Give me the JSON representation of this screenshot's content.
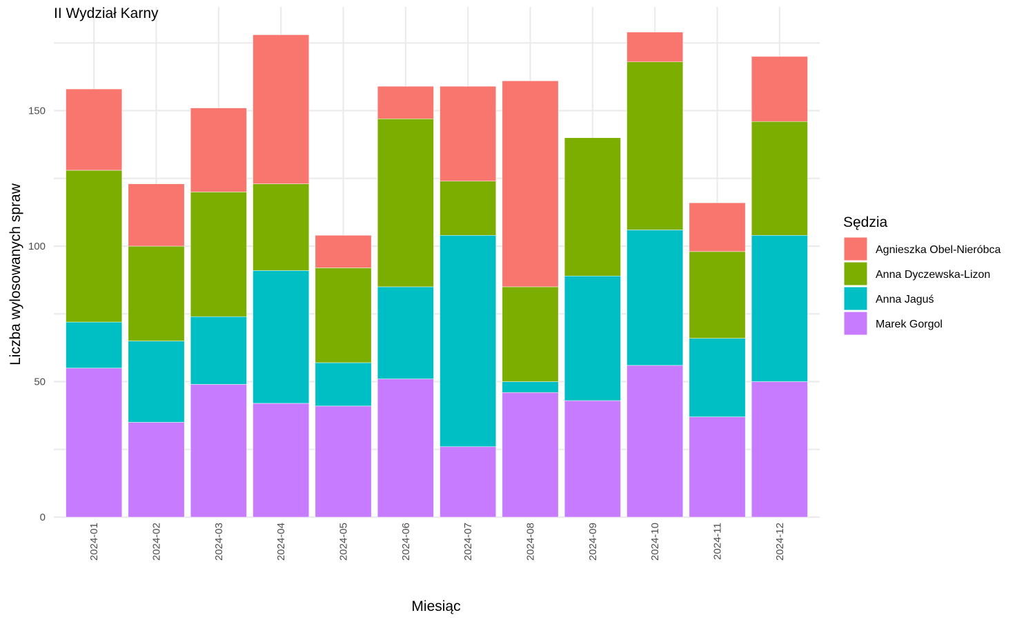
{
  "chart_data": {
    "type": "bar",
    "stacked": true,
    "title": "II Wydział Karny",
    "xlabel": "Miesiąc",
    "ylabel": "Liczba wylosowanych spraw",
    "ylim": [
      0,
      188
    ],
    "yticks": [
      0,
      50,
      100,
      150
    ],
    "grid": true,
    "legend_placement": "right",
    "legend_title": "Sędzia",
    "categories": [
      "2024-01",
      "2024-02",
      "2024-03",
      "2024-04",
      "2024-05",
      "2024-06",
      "2024-07",
      "2024-08",
      "2024-09",
      "2024-10",
      "2024-11",
      "2024-12"
    ],
    "series": [
      {
        "name": "Marek Gorgol",
        "color": "#C77CFF",
        "values": [
          55,
          35,
          49,
          42,
          41,
          51,
          26,
          46,
          43,
          56,
          37,
          50
        ]
      },
      {
        "name": "Anna Jaguś",
        "color": "#00BFC4",
        "values": [
          17,
          30,
          25,
          49,
          16,
          34,
          78,
          4,
          46,
          50,
          29,
          54
        ]
      },
      {
        "name": "Anna Dyczewska-Lizon",
        "color": "#7CAE00",
        "values": [
          56,
          35,
          46,
          32,
          35,
          62,
          20,
          35,
          51,
          62,
          32,
          42
        ]
      },
      {
        "name": "Agnieszka Obel-Nieróbca",
        "color": "#F8766D",
        "values": [
          30,
          23,
          31,
          55,
          12,
          12,
          35,
          76,
          0,
          11,
          18,
          24
        ]
      }
    ],
    "legend_order": [
      "Agnieszka Obel-Nieróbca",
      "Anna Dyczewska-Lizon",
      "Anna Jaguś",
      "Marek Gorgol"
    ]
  }
}
